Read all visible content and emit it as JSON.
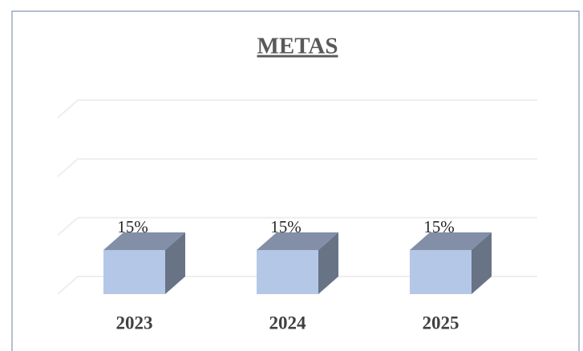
{
  "chart_data": {
    "type": "bar3d",
    "title": "METAS",
    "categories": [
      "2023",
      "2024",
      "2025"
    ],
    "values": [
      15,
      15,
      15
    ],
    "value_labels": [
      "15%",
      "15%",
      "15%"
    ],
    "color": "#b4c7e7",
    "ylim": [
      0,
      60
    ],
    "yticks": [
      0,
      20,
      40,
      60
    ],
    "grid": true
  }
}
